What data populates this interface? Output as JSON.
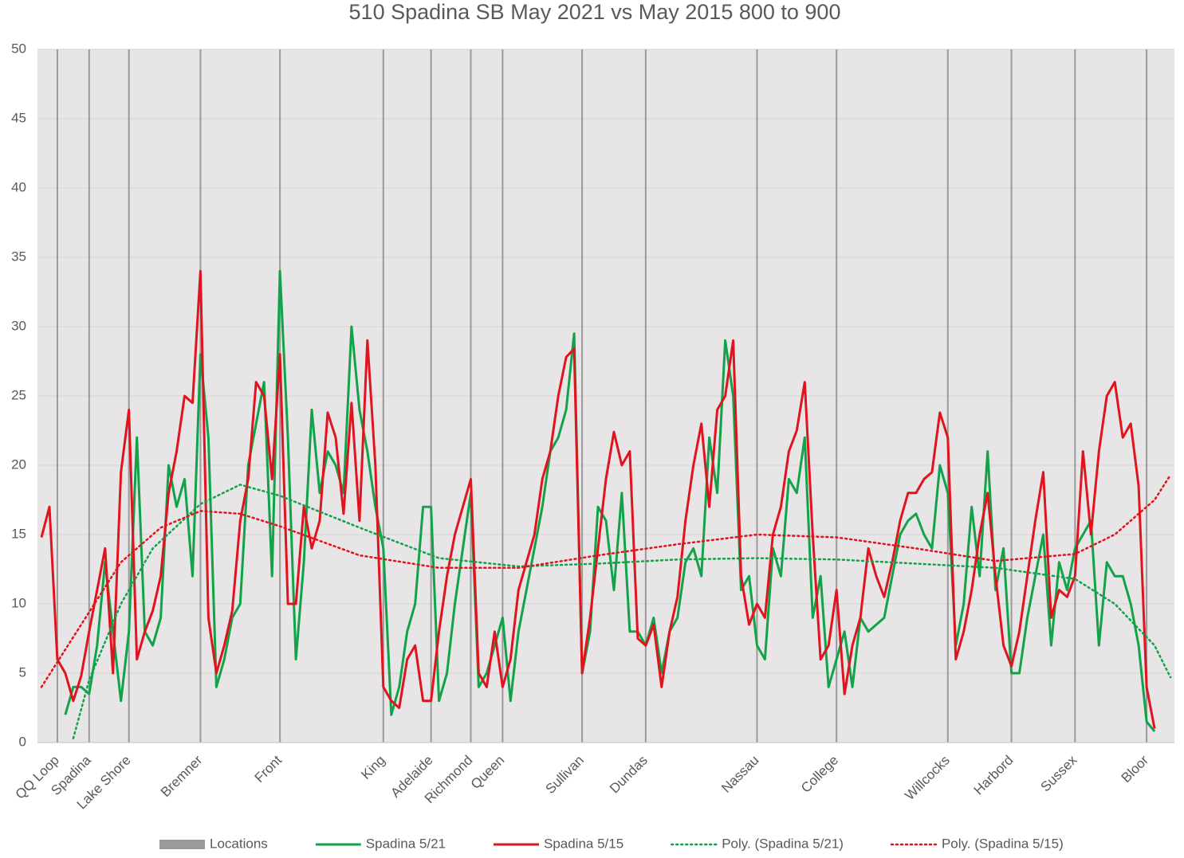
{
  "chart_data": {
    "type": "line",
    "title": "510 Spadina SB May 2021 vs May 2015 800 to 900",
    "categories": [
      null,
      null,
      "QQ Loop",
      null,
      null,
      null,
      "Spadina",
      null,
      null,
      null,
      null,
      "Lake Shore",
      null,
      null,
      null,
      null,
      null,
      null,
      null,
      null,
      "Bremner",
      null,
      null,
      null,
      null,
      null,
      null,
      null,
      null,
      null,
      "Front",
      null,
      null,
      null,
      null,
      null,
      null,
      null,
      null,
      null,
      null,
      null,
      null,
      "King",
      null,
      null,
      null,
      null,
      null,
      "Adelaide",
      null,
      null,
      null,
      null,
      "Richmond",
      null,
      null,
      null,
      "Queen",
      null,
      null,
      null,
      null,
      null,
      null,
      null,
      null,
      null,
      "Sullivan",
      null,
      null,
      null,
      null,
      null,
      null,
      null,
      "Dundas",
      null,
      null,
      null,
      null,
      null,
      null,
      null,
      null,
      null,
      null,
      null,
      null,
      null,
      "Nassau",
      null,
      null,
      null,
      null,
      null,
      null,
      null,
      null,
      null,
      "College",
      null,
      null,
      null,
      null,
      null,
      null,
      null,
      null,
      null,
      null,
      null,
      null,
      null,
      "Willcocks",
      null,
      null,
      null,
      null,
      null,
      null,
      null,
      "Harbord",
      null,
      null,
      null,
      null,
      null,
      null,
      null,
      "Sussex",
      null,
      null,
      null,
      null,
      null,
      null,
      null,
      null,
      "Bloor",
      null,
      null,
      null
    ],
    "ylim": [
      0,
      50
    ],
    "yticks": [
      0,
      5,
      10,
      15,
      20,
      25,
      30,
      35,
      40,
      45,
      50
    ],
    "grid": true,
    "legend": "bottom",
    "series": [
      {
        "name": "Locations",
        "type": "bar",
        "color": "#9a9a9a",
        "x": [
          2,
          6,
          11,
          20,
          30,
          43,
          49,
          54,
          58,
          68,
          76,
          90,
          100,
          114,
          122,
          130,
          139
        ],
        "values": [
          50,
          50,
          50,
          50,
          50,
          50,
          50,
          50,
          50,
          50,
          50,
          50,
          50,
          50,
          50,
          50,
          50
        ]
      },
      {
        "name": "Spadina 5/21",
        "type": "line",
        "style": "solid",
        "color": "#12a34a",
        "values": [
          null,
          null,
          null,
          2,
          4,
          4,
          3.5,
          7,
          13,
          8,
          3,
          8,
          22,
          8,
          7,
          9,
          20,
          17,
          19,
          12,
          28,
          22,
          4,
          6,
          9,
          10,
          20,
          23,
          26,
          12,
          34,
          22,
          6,
          13,
          24,
          18,
          21,
          20,
          18,
          30,
          24,
          21,
          17,
          14,
          2,
          4,
          8,
          10,
          17,
          17,
          3,
          5,
          10,
          14,
          18,
          4,
          5,
          7,
          9,
          3,
          8,
          11,
          14,
          17,
          21,
          22,
          24,
          29.5,
          5,
          8,
          17,
          16,
          11,
          18,
          8,
          8,
          7,
          9,
          5,
          8,
          9,
          13,
          14,
          12,
          22,
          18,
          29,
          25,
          11,
          12,
          7,
          6,
          14,
          12,
          19,
          18,
          22,
          9,
          12,
          4,
          6,
          8,
          4,
          9,
          8,
          8.5,
          9,
          12,
          15,
          16,
          16.5,
          15,
          14,
          20,
          18,
          7,
          10,
          17,
          12,
          21,
          11,
          14,
          5,
          5,
          9,
          12,
          15,
          7,
          13,
          11,
          14,
          15,
          16,
          7,
          13,
          12,
          12,
          10,
          7,
          1.5,
          0.8,
          null,
          null
        ]
      },
      {
        "name": "Spadina 5/15",
        "type": "line",
        "style": "solid",
        "color": "#e0141e",
        "values": [
          14.8,
          17,
          6,
          5,
          3,
          4.8,
          8,
          11,
          14,
          5,
          19.5,
          24,
          6,
          8,
          9.5,
          12,
          18,
          21,
          25,
          24.5,
          34,
          9,
          5,
          7,
          9.5,
          16,
          19,
          26,
          25,
          19,
          28,
          10,
          10,
          17,
          14,
          16,
          23.8,
          22,
          16.5,
          24.5,
          16,
          29,
          20,
          4,
          3,
          2.5,
          6,
          7,
          3,
          3,
          8,
          12,
          15,
          17,
          19,
          5,
          4,
          8,
          4,
          6,
          11,
          13,
          15,
          19,
          21,
          25,
          27.8,
          28.4,
          5,
          9,
          14,
          19,
          22.4,
          20,
          21,
          7.5,
          7,
          8.5,
          4,
          8,
          10.5,
          16,
          20,
          23,
          17,
          24,
          25,
          29,
          12,
          8.5,
          10,
          9,
          15,
          17,
          21,
          22.5,
          26,
          15,
          6,
          7,
          11,
          3.5,
          7,
          9,
          14,
          12,
          10.5,
          13,
          16,
          18,
          18,
          19,
          19.5,
          23.8,
          22,
          6,
          8,
          11,
          15,
          18,
          12,
          7,
          5.5,
          8,
          12,
          16,
          19.5,
          9,
          11,
          10.5,
          12,
          21,
          15,
          21,
          25,
          26,
          22,
          23,
          18.5,
          4,
          1,
          null,
          null
        ]
      },
      {
        "name": "Poly. (Spadina 5/21)",
        "type": "line",
        "style": "dotted",
        "color": "#12a34a",
        "x": [
          4,
          6,
          10,
          14,
          20,
          25,
          30,
          40,
          50,
          60,
          70,
          80,
          90,
          100,
          110,
          120,
          130,
          135,
          140,
          142
        ],
        "values": [
          0.3,
          4.5,
          10,
          14,
          17.2,
          18.6,
          17.8,
          15.5,
          13.3,
          12.7,
          12.9,
          13.2,
          13.3,
          13.2,
          12.9,
          12.6,
          11.8,
          10,
          7,
          4.7
        ]
      },
      {
        "name": "Poly. (Spadina 5/15)",
        "type": "line",
        "style": "dotted",
        "color": "#e0141e",
        "x": [
          0,
          5,
          10,
          15,
          20,
          25,
          30,
          40,
          50,
          60,
          70,
          80,
          90,
          100,
          110,
          120,
          130,
          135,
          140,
          142
        ],
        "values": [
          4,
          8.5,
          13,
          15.5,
          16.7,
          16.5,
          15.6,
          13.5,
          12.6,
          12.6,
          13.5,
          14.3,
          15,
          14.8,
          14,
          13.1,
          13.6,
          15,
          17.5,
          19.3
        ]
      }
    ]
  }
}
